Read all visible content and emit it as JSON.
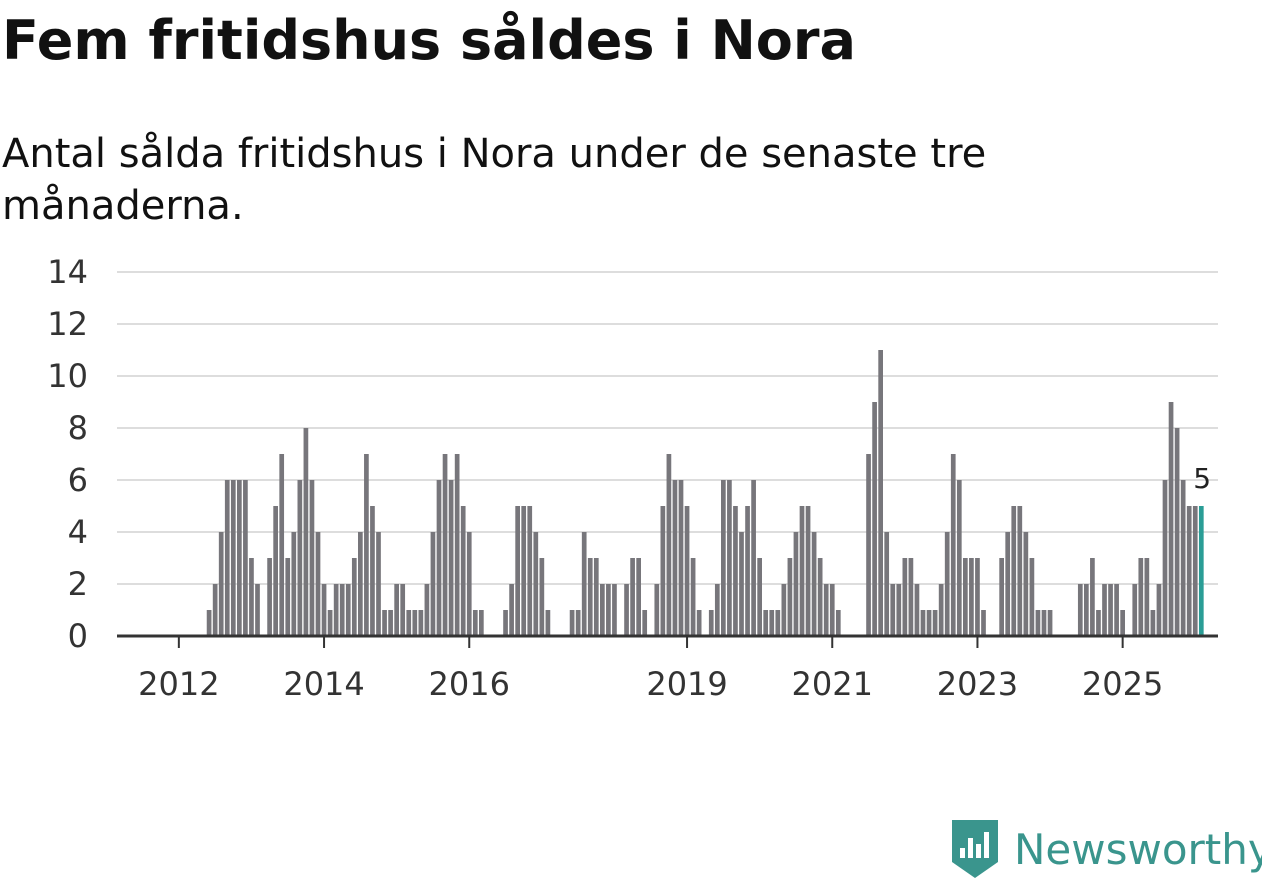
{
  "header": {
    "title": "Fem fritidshus såldes i Nora",
    "subtitle": "Antal sålda fritidshus i Nora under de senaste tre månaderna."
  },
  "brand": {
    "name": "Newsworthy",
    "icon": "newsworthy-logo-icon",
    "color": "#3a958d"
  },
  "chart_data": {
    "type": "bar",
    "title": "Fem fritidshus såldes i Nora",
    "subtitle": "Antal sålda fritidshus i Nora under de senaste tre månaderna.",
    "xlabel": "",
    "ylabel": "",
    "ylim": [
      0,
      14
    ],
    "yticks": [
      "0",
      "2",
      "4",
      "6",
      "8",
      "10",
      "12",
      "14"
    ],
    "grid": true,
    "x_start_month": "2011-06",
    "x_tick_labels": [
      {
        "label": "2012",
        "month_index": 7
      },
      {
        "label": "2014",
        "month_index": 31
      },
      {
        "label": "2016",
        "month_index": 55
      },
      {
        "label": "2019",
        "month_index": 91
      },
      {
        "label": "2021",
        "month_index": 115
      },
      {
        "label": "2023",
        "month_index": 139
      },
      {
        "label": "2025",
        "month_index": 163
      }
    ],
    "colors": {
      "bar": "#77767b",
      "highlight": "#2a9d96",
      "grid": "#dddddd",
      "axis": "#333333"
    },
    "highlight_label": "5",
    "values": [
      0,
      0,
      0,
      0,
      0,
      0,
      0,
      0,
      0,
      0,
      0,
      0,
      1,
      2,
      4,
      6,
      6,
      6,
      6,
      3,
      2,
      0,
      3,
      5,
      7,
      3,
      4,
      6,
      8,
      6,
      4,
      2,
      1,
      2,
      2,
      2,
      3,
      4,
      7,
      5,
      4,
      1,
      1,
      2,
      2,
      1,
      1,
      1,
      2,
      4,
      6,
      7,
      6,
      7,
      5,
      4,
      1,
      1,
      0,
      0,
      0,
      1,
      2,
      5,
      5,
      5,
      4,
      3,
      1,
      0,
      0,
      0,
      1,
      1,
      4,
      3,
      3,
      2,
      2,
      2,
      0,
      2,
      3,
      3,
      1,
      0,
      2,
      5,
      7,
      6,
      6,
      5,
      3,
      1,
      0,
      1,
      2,
      6,
      6,
      5,
      4,
      5,
      6,
      3,
      1,
      1,
      1,
      2,
      3,
      4,
      5,
      5,
      4,
      3,
      2,
      2,
      1,
      0,
      0,
      0,
      0,
      7,
      9,
      11,
      4,
      2,
      2,
      3,
      3,
      2,
      1,
      1,
      1,
      2,
      4,
      7,
      6,
      3,
      3,
      3,
      1,
      0,
      0,
      3,
      4,
      5,
      5,
      4,
      3,
      1,
      1,
      1,
      0,
      0,
      0,
      0,
      2,
      2,
      3,
      1,
      2,
      2,
      2,
      1,
      0,
      2,
      3,
      3,
      1,
      2,
      6,
      9,
      8,
      6,
      5,
      5,
      5
    ]
  }
}
